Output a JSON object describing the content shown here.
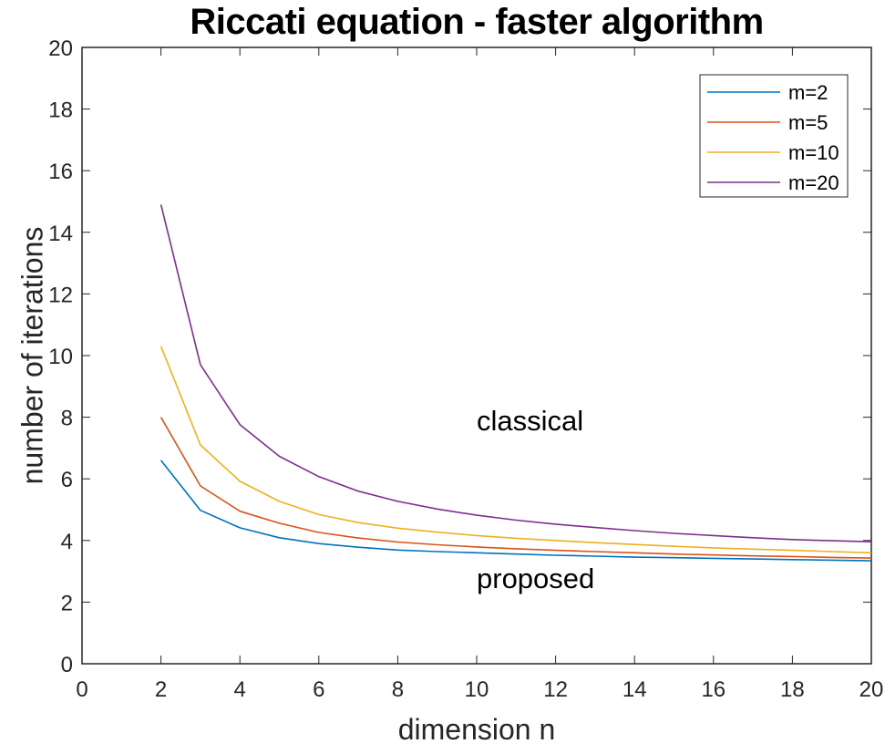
{
  "chart_data": {
    "type": "line",
    "title": "Riccati equation - faster algorithm",
    "xlabel": "dimension n",
    "ylabel": "number of iterations",
    "xlim": [
      0,
      20
    ],
    "ylim": [
      0,
      20
    ],
    "xticks": [
      0,
      2,
      4,
      6,
      8,
      10,
      12,
      14,
      16,
      18,
      20
    ],
    "yticks": [
      0,
      2,
      4,
      6,
      8,
      10,
      12,
      14,
      16,
      18,
      20
    ],
    "grid": false,
    "legend_position": "upper right",
    "x": [
      2,
      3,
      4,
      5,
      6,
      7,
      8,
      9,
      10,
      11,
      12,
      13,
      14,
      15,
      16,
      17,
      18,
      19,
      20
    ],
    "series": [
      {
        "name": "m=2",
        "color": "#0072BD",
        "values": [
          6.6,
          4.98,
          4.41,
          4.09,
          3.9,
          3.78,
          3.69,
          3.64,
          3.6,
          3.56,
          3.52,
          3.49,
          3.46,
          3.44,
          3.42,
          3.4,
          3.38,
          3.36,
          3.34
        ]
      },
      {
        "name": "m=5",
        "color": "#D95319",
        "values": [
          8.0,
          5.77,
          4.95,
          4.56,
          4.26,
          4.08,
          3.95,
          3.86,
          3.79,
          3.73,
          3.68,
          3.64,
          3.6,
          3.56,
          3.53,
          3.5,
          3.48,
          3.45,
          3.43
        ]
      },
      {
        "name": "m=10",
        "color": "#EDB120",
        "values": [
          10.3,
          7.1,
          5.92,
          5.27,
          4.84,
          4.58,
          4.4,
          4.27,
          4.16,
          4.07,
          4.0,
          3.93,
          3.87,
          3.81,
          3.76,
          3.72,
          3.68,
          3.64,
          3.6
        ]
      },
      {
        "name": "m=20",
        "color": "#7E2F8E",
        "values": [
          14.9,
          9.7,
          7.76,
          6.73,
          6.07,
          5.6,
          5.27,
          5.02,
          4.82,
          4.66,
          4.53,
          4.42,
          4.32,
          4.23,
          4.16,
          4.09,
          4.03,
          3.99,
          3.96
        ]
      }
    ],
    "annotations": [
      {
        "text": "classical",
        "x": 10,
        "y": 7.8
      },
      {
        "text": "proposed",
        "x": 10,
        "y": 2.7
      }
    ]
  }
}
